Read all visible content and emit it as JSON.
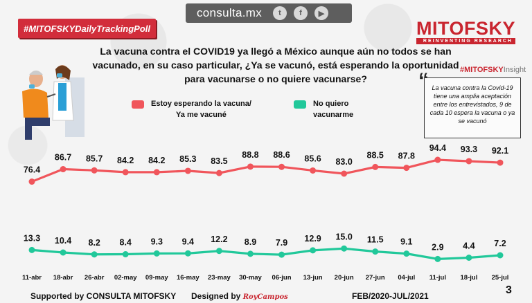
{
  "header": {
    "domain": "consulta.mx",
    "social": [
      {
        "icon": "twitter-icon",
        "glyph": "t"
      },
      {
        "icon": "facebook-icon",
        "glyph": "f"
      },
      {
        "icon": "youtube-icon",
        "glyph": "▶"
      }
    ],
    "hashtag": "#MITOFSKYDailyTrackingPoll",
    "brand": "MITOFSKY",
    "brand_tagline": "REINVENTING RESEARCH"
  },
  "question": "La vacuna contra el COVID19 ya llegó a México aunque aún no todos se han vacunado, en su caso particular, ¿Ya se vacunó, está esperando la oportunidad para vacunarse o no quiere vacunarse?",
  "insight": {
    "label": "#MITOFSKY",
    "label_suffix": "Insight",
    "text": "La vacuna contra la Covid-19 tiene una amplia aceptación entre los entrevistados, 9 de cada 10 espera la vacuna o ya se vacunó"
  },
  "footer": {
    "supported": "Supported by   CONSULTA   MITOFSKY",
    "designed": "Designed by",
    "designer": "RoyCampos",
    "period": "FEB/2020-JUL/2021",
    "page": "3"
  },
  "colors": {
    "series1": "#f0555b",
    "series2": "#21c89a",
    "accent": "#c9252f"
  },
  "chart_data": {
    "type": "line",
    "categories": [
      "11-abr",
      "18-abr",
      "26-abr",
      "02-may",
      "09-may",
      "16-may",
      "23-may",
      "30-may",
      "06-jun",
      "13-jun",
      "20-jun",
      "27-jun",
      "04-jul",
      "11-jul",
      "18-jul",
      "25-jul"
    ],
    "series": [
      {
        "name": "Estoy esperando la vacuna/ Ya me vacuné",
        "line1": "Estoy esperando la vacuna/",
        "line2": "Ya me vacuné",
        "values": [
          76.4,
          86.7,
          85.7,
          84.2,
          84.2,
          85.3,
          83.5,
          88.8,
          88.6,
          85.6,
          83.0,
          88.5,
          87.8,
          94.4,
          93.3,
          92.1
        ]
      },
      {
        "name": "No quiero vacunarme",
        "line1": "No quiero",
        "line2": "vacunarme",
        "values": [
          13.3,
          10.4,
          8.2,
          8.4,
          9.3,
          9.4,
          12.2,
          8.9,
          7.9,
          12.9,
          15.0,
          11.5,
          9.1,
          2.9,
          4.4,
          7.2
        ]
      }
    ],
    "title": "",
    "xlabel": "",
    "ylabel": ""
  }
}
